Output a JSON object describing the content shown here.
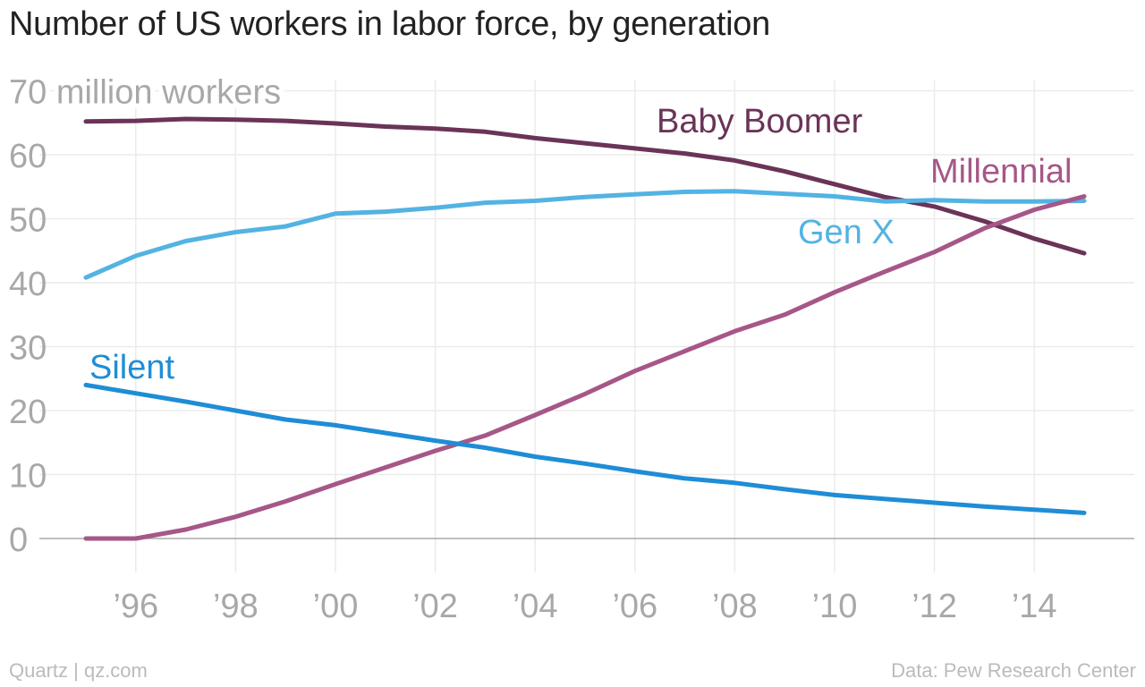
{
  "title": "Number of US workers in labor force, by generation",
  "footer": {
    "source_left": "Quartz | qz.com",
    "source_right": "Data: Pew Research Center"
  },
  "chart_data": {
    "type": "line",
    "title": "Number of US workers in labor force, by generation",
    "ylabel": "70 million workers",
    "ylim": [
      0,
      70
    ],
    "xlim": [
      1995,
      2015
    ],
    "y_ticks": [
      0,
      10,
      20,
      30,
      40,
      50,
      60,
      70
    ],
    "y_tick_labels": [
      "0",
      "10",
      "20",
      "30",
      "40",
      "50",
      "60",
      "70 million workers"
    ],
    "x_ticks": [
      1996,
      1998,
      2000,
      2002,
      2004,
      2006,
      2008,
      2010,
      2012,
      2014
    ],
    "x_tick_labels": [
      "’96",
      "’98",
      "’00",
      "’02",
      "’04",
      "’06",
      "’08",
      "’10",
      "’12",
      "’14"
    ],
    "grid": true,
    "legend": "direct labels",
    "x": [
      1995,
      1996,
      1997,
      1998,
      1999,
      2000,
      2001,
      2002,
      2003,
      2004,
      2005,
      2006,
      2007,
      2008,
      2009,
      2010,
      2011,
      2012,
      2013,
      2014,
      2015
    ],
    "series": [
      {
        "name": "Baby Boomer",
        "color": "#6b3358",
        "values": [
          65.2,
          65.3,
          65.6,
          65.5,
          65.3,
          64.9,
          64.4,
          64.1,
          63.6,
          62.6,
          61.8,
          61.0,
          60.2,
          59.1,
          57.4,
          55.4,
          53.4,
          51.9,
          49.6,
          46.9,
          44.6
        ]
      },
      {
        "name": "Gen X",
        "color": "#53b3e2",
        "values": [
          40.8,
          44.2,
          46.5,
          47.9,
          48.8,
          50.8,
          51.1,
          51.7,
          52.5,
          52.8,
          53.4,
          53.8,
          54.2,
          54.3,
          53.9,
          53.5,
          52.7,
          52.9,
          52.7,
          52.7,
          52.8
        ]
      },
      {
        "name": "Millennial",
        "color": "#a65788",
        "values": [
          0,
          0,
          1.4,
          3.4,
          5.8,
          8.5,
          11.1,
          13.7,
          16.1,
          19.3,
          22.6,
          26.2,
          29.3,
          32.4,
          35.0,
          38.5,
          41.7,
          44.8,
          48.5,
          51.4,
          53.5
        ]
      },
      {
        "name": "Silent",
        "color": "#1f8dd6",
        "values": [
          24.0,
          22.7,
          21.4,
          20.0,
          18.6,
          17.7,
          16.5,
          15.3,
          14.2,
          12.8,
          11.7,
          10.5,
          9.4,
          8.7,
          7.7,
          6.8,
          6.2,
          5.6,
          5.0,
          4.5,
          4.0
        ]
      }
    ],
    "colors": {
      "grid": "#ebebeb",
      "zero_axis": "#aaaaaa",
      "tick_text": "#a8a8a8"
    }
  }
}
